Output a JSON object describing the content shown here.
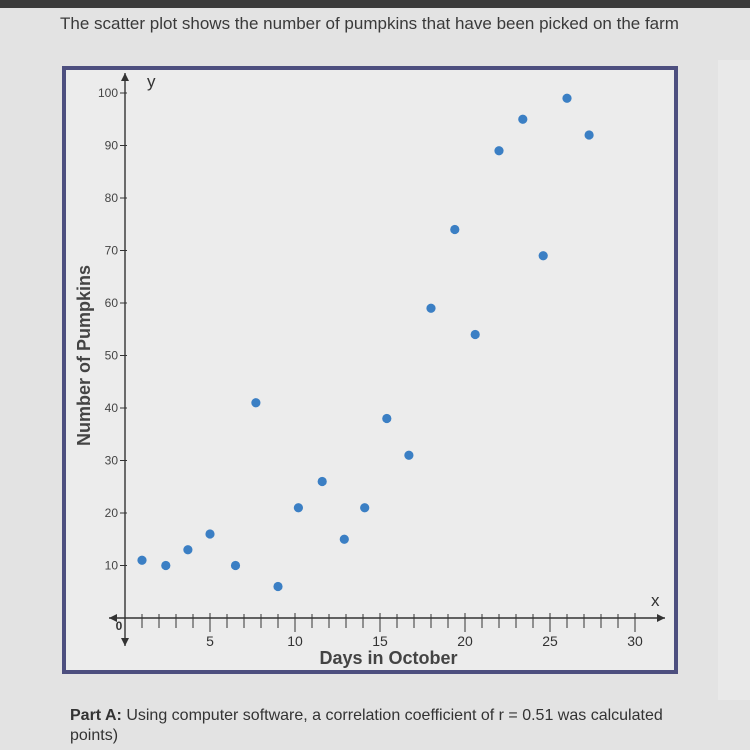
{
  "question": {
    "text": "The scatter plot shows the number of pumpkins that have been picked on the farm"
  },
  "part_a": {
    "label": "Part A:",
    "text": "Using computer software, a correlation coefficient of r = 0.51 was calculated",
    "continuation": "points)"
  },
  "chart_data": {
    "type": "scatter",
    "xlabel": "Days in October",
    "ylabel": "Number of Pumpkins",
    "x_axis_letter": "x",
    "y_axis_letter": "y",
    "origin_label": "0",
    "xlim": [
      0,
      30
    ],
    "ylim": [
      0,
      100
    ],
    "x_tick_step": 1,
    "x_labeled_ticks": [
      5,
      10,
      15,
      20,
      25,
      30
    ],
    "y_labeled_ticks": [
      10,
      20,
      30,
      40,
      50,
      60,
      70,
      80,
      90,
      100
    ],
    "grid": false,
    "point_color": "#3b7fc4",
    "points": [
      {
        "x": 1,
        "y": 11
      },
      {
        "x": 2.4,
        "y": 10
      },
      {
        "x": 3.7,
        "y": 13
      },
      {
        "x": 5,
        "y": 16
      },
      {
        "x": 6.5,
        "y": 10
      },
      {
        "x": 7.7,
        "y": 41
      },
      {
        "x": 9,
        "y": 6
      },
      {
        "x": 10.2,
        "y": 21
      },
      {
        "x": 11.6,
        "y": 26
      },
      {
        "x": 12.9,
        "y": 15
      },
      {
        "x": 14.1,
        "y": 21
      },
      {
        "x": 15.4,
        "y": 38
      },
      {
        "x": 16.7,
        "y": 31
      },
      {
        "x": 18,
        "y": 59
      },
      {
        "x": 19.4,
        "y": 74
      },
      {
        "x": 20.6,
        "y": 54
      },
      {
        "x": 22,
        "y": 89
      },
      {
        "x": 23.4,
        "y": 95
      },
      {
        "x": 24.6,
        "y": 69
      },
      {
        "x": 26,
        "y": 99
      },
      {
        "x": 27.3,
        "y": 92
      }
    ]
  }
}
